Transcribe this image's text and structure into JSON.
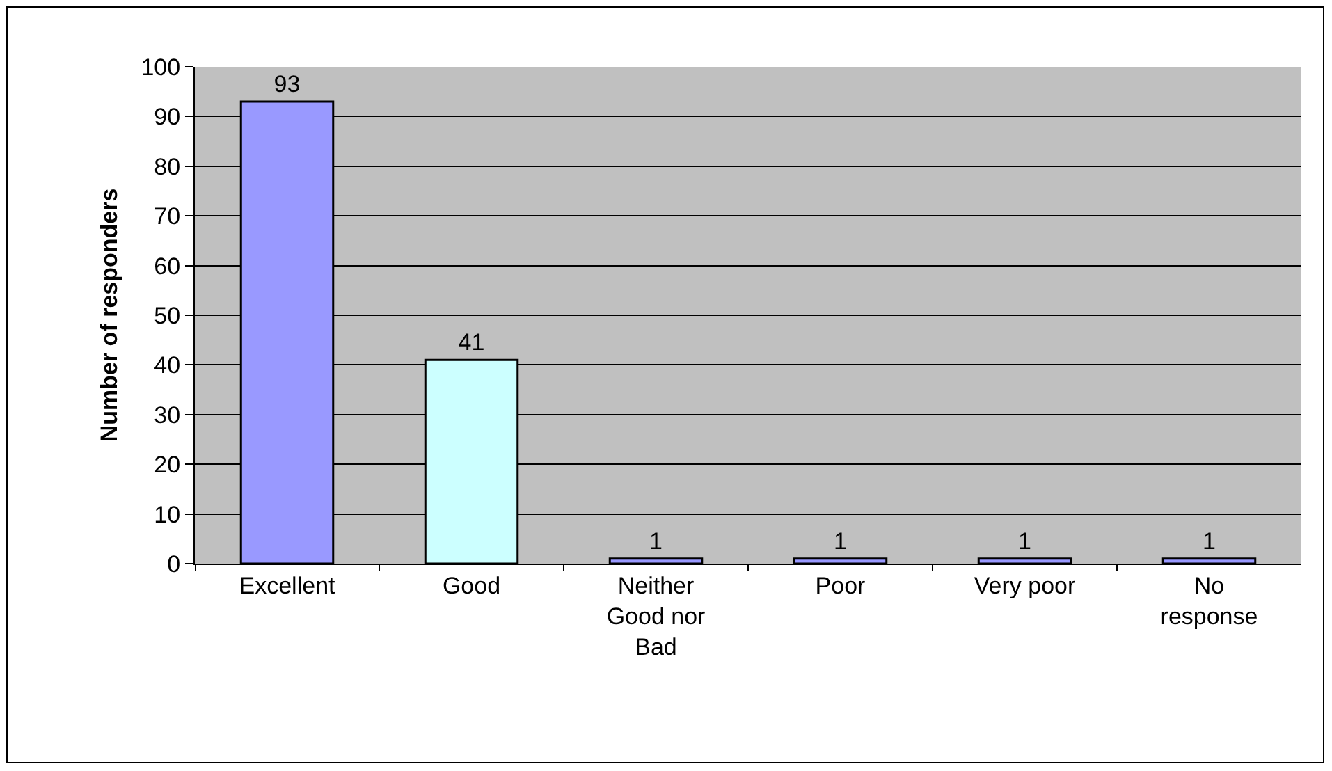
{
  "chart_data": {
    "type": "bar",
    "ylabel": "Number of responders",
    "categories": [
      "Excellent",
      "Good",
      "Neither Good nor Bad",
      "Poor",
      "Very poor",
      "No response"
    ],
    "values": [
      93,
      41,
      1,
      1,
      1,
      1
    ],
    "colors": [
      "#9999ff",
      "#ccffff",
      "#9999ff",
      "#9999ff",
      "#9999ff",
      "#9999ff"
    ],
    "ylim": [
      0,
      100
    ],
    "yticks": [
      0,
      10,
      20,
      30,
      40,
      50,
      60,
      70,
      80,
      90,
      100
    ],
    "grid": "y",
    "data_labels": true
  }
}
